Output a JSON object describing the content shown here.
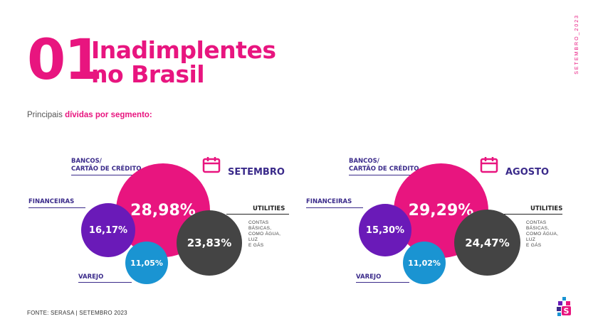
{
  "header": {
    "number": "01",
    "title_line1": "Inadimplentes",
    "title_line2": "no Brasil",
    "vertical_text": "SETEMBRO_2023"
  },
  "subtitle": {
    "prefix": "Principais ",
    "emphasis": "dívidas por segmento:"
  },
  "source": "FONTE: SERASA |  SETEMBRO 2023",
  "labels": {
    "bancos_line1": "BANCOS/",
    "bancos_line2": "CARTÃO DE CRÉDITO",
    "financeiras": "FINANCEIRAS",
    "utilities": "UTILITIES",
    "utilities_note_line1": "CONTAS BÁSICAS,",
    "utilities_note_line2": "COMO  ÁGUA, LUZ",
    "utilities_note_line3": "E GÁS",
    "varejo": "VAREJO"
  },
  "colors": {
    "bancos": "#e8157f",
    "financeiras": "#6a1ab8",
    "utilities": "#444444",
    "varejo": "#1a94d2"
  },
  "chart_data": [
    {
      "type": "bubble",
      "title": "SETEMBRO",
      "categories": [
        "BANCOS/ CARTÃO DE CRÉDITO",
        "FINANCEIRAS",
        "UTILITIES",
        "VAREJO"
      ],
      "values": [
        28.98,
        16.17,
        23.83,
        11.05
      ],
      "value_labels": [
        "28,98%",
        "16,17%",
        "23,83%",
        "11,05%"
      ]
    },
    {
      "type": "bubble",
      "title": "AGOSTO",
      "categories": [
        "BANCOS/ CARTÃO DE CRÉDITO",
        "FINANCEIRAS",
        "UTILITIES",
        "VAREJO"
      ],
      "values": [
        29.29,
        15.3,
        24.47,
        11.02
      ],
      "value_labels": [
        "29,29%",
        "15,30%",
        "24,47%",
        "11,02%"
      ]
    }
  ]
}
